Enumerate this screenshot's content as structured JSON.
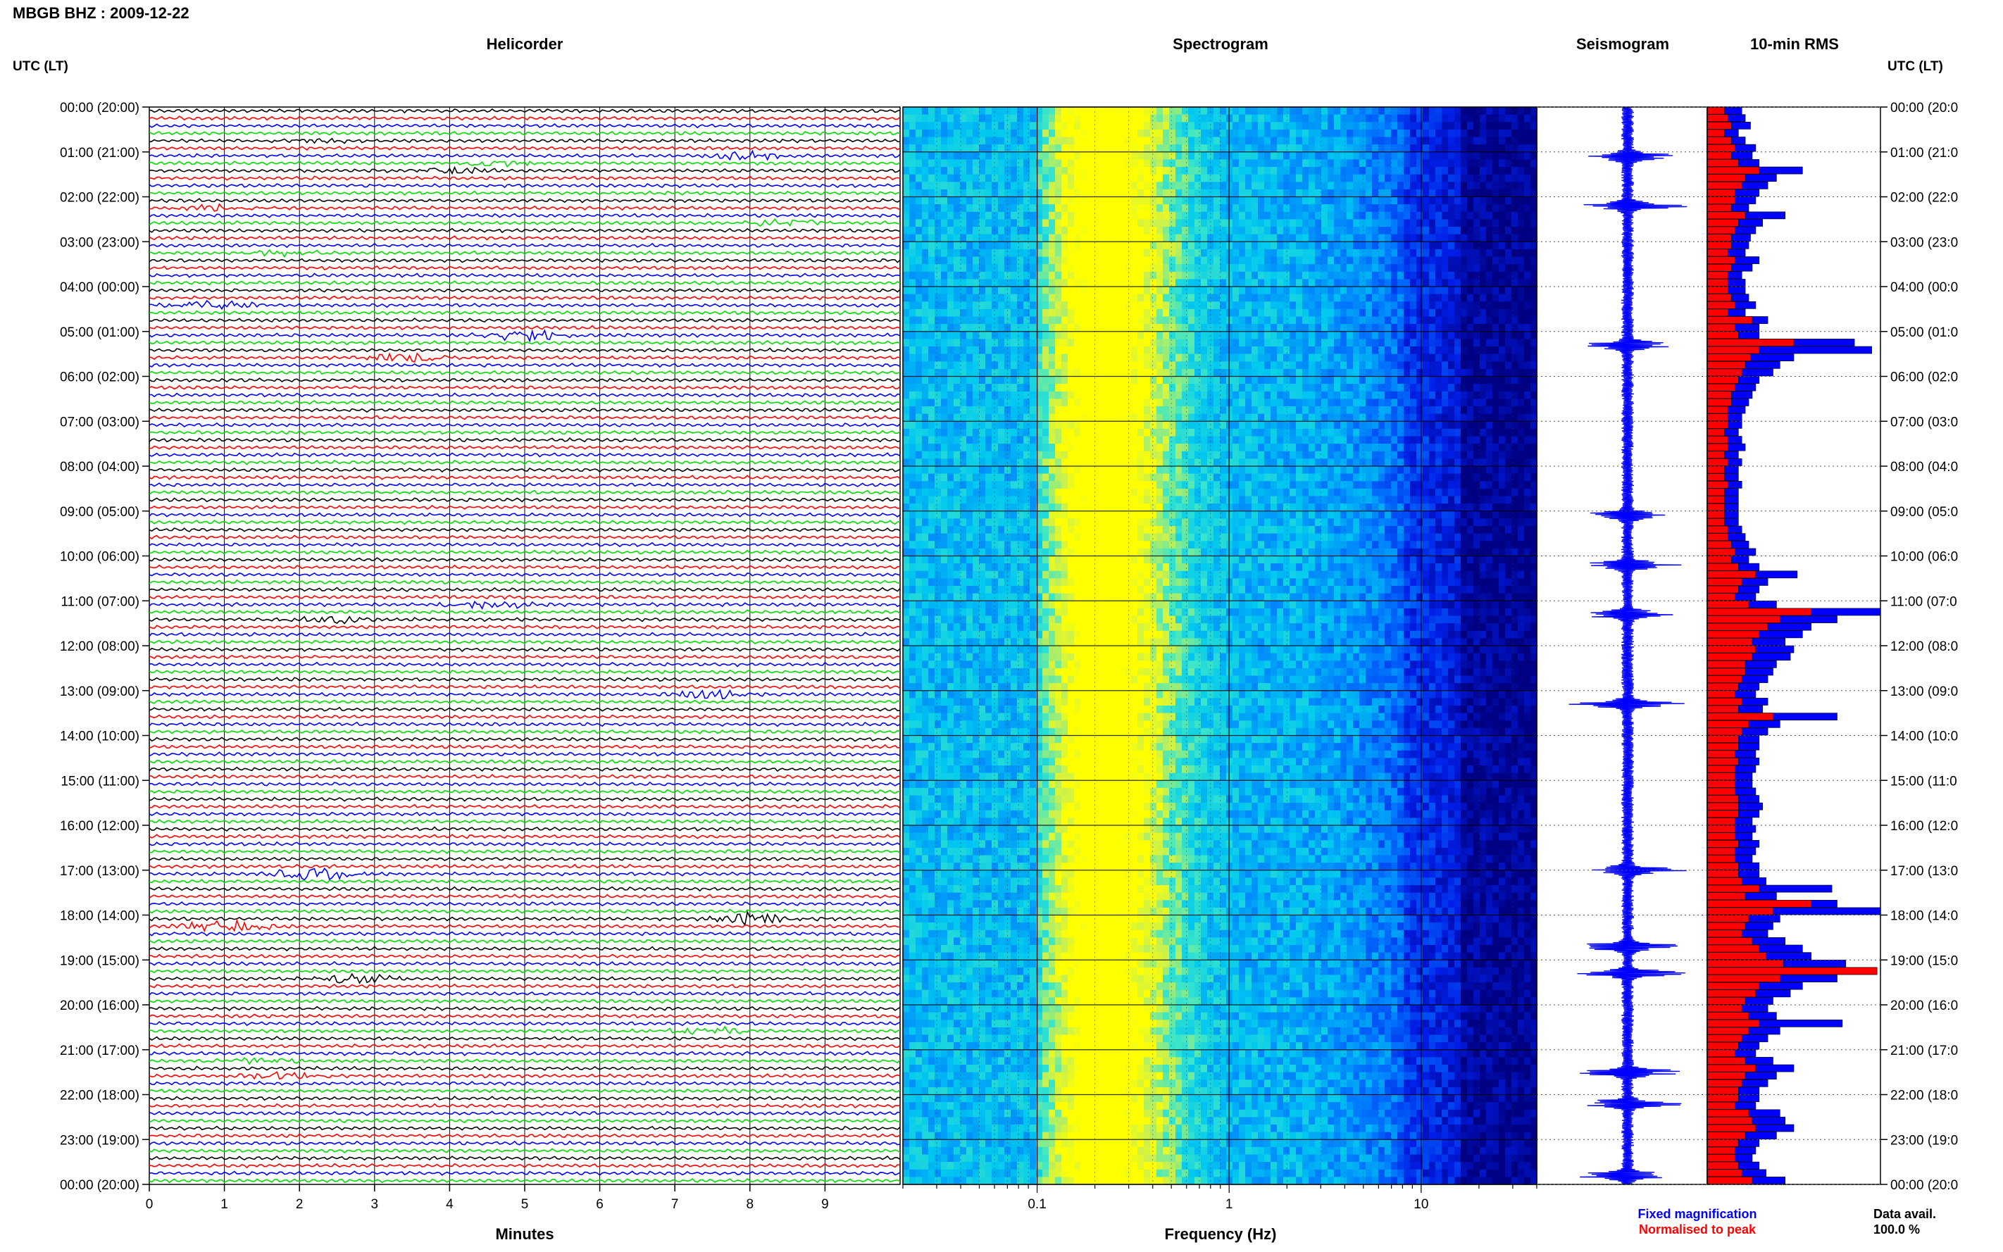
{
  "header": {
    "station_title": "MBGB BHZ : 2009-12-22",
    "utc_label_left": "UTC (LT)",
    "utc_label_right": "UTC (LT)"
  },
  "panels": {
    "helicorder_title": "Helicorder",
    "spectrogram_title": "Spectrogram",
    "seismogram_title": "Seismogram",
    "rms_title": "10-min RMS"
  },
  "time_labels": [
    "00:00 (20:00)",
    "01:00 (21:00)",
    "02:00 (22:00)",
    "03:00 (23:00)",
    "04:00 (00:00)",
    "05:00 (01:00)",
    "06:00 (02:00)",
    "07:00 (03:00)",
    "08:00 (04:00)",
    "09:00 (05:00)",
    "10:00 (06:00)",
    "11:00 (07:00)",
    "12:00 (08:00)",
    "13:00 (09:00)",
    "14:00 (10:00)",
    "15:00 (11:00)",
    "16:00 (12:00)",
    "17:00 (13:00)",
    "18:00 (14:00)",
    "19:00 (15:00)",
    "20:00 (16:00)",
    "21:00 (17:00)",
    "22:00 (18:00)",
    "23:00 (19:00)",
    "00:00 (20:00)"
  ],
  "time_labels_right": [
    "00:00 (20:0",
    "01:00 (21:0",
    "02:00 (22:0",
    "03:00 (23:0",
    "04:00 (00:0",
    "05:00 (01:0",
    "06:00 (02:0",
    "07:00 (03:0",
    "08:00 (04:0",
    "09:00 (05:0",
    "10:00 (06:0",
    "11:00 (07:0",
    "12:00 (08:0",
    "13:00 (09:0",
    "14:00 (10:0",
    "15:00 (11:0",
    "16:00 (12:0",
    "17:00 (13:0",
    "18:00 (14:0",
    "19:00 (15:0",
    "20:00 (16:0",
    "21:00 (17:0",
    "22:00 (18:0",
    "23:00 (19:0",
    "00:00 (20:0"
  ],
  "footer": {
    "legend_fixed": "Fixed magnification",
    "legend_normalised": "Normalised to peak",
    "data_avail_label": "Data avail.",
    "data_avail_value": "100.0 %"
  },
  "colors": {
    "trace_cycle": [
      "#000000",
      "#ff0000",
      "#0000ff",
      "#00dd00"
    ],
    "fixed": "#0000ff",
    "normalised": "#ff0000",
    "spectro_low": "#00008b",
    "spectro_mid": "#00bfff",
    "spectro_high": "#ffff00"
  },
  "chart_data": [
    {
      "type": "line",
      "panel": "helicorder",
      "title": "Helicorder",
      "xlabel": "Minutes",
      "xticks": [
        "0",
        "1",
        "2",
        "3",
        "4",
        "5",
        "6",
        "7",
        "8",
        "9"
      ],
      "xlim": [
        0,
        10
      ],
      "trace_interval_minutes": 10,
      "traces_per_hour": 6,
      "hours": 24,
      "events": [
        {
          "hour": 0,
          "slot": 4,
          "minute": 2.2,
          "amp": 2.0
        },
        {
          "hour": 1,
          "slot": 1,
          "minute": 4.5,
          "amp": 3.0
        },
        {
          "hour": 1,
          "slot": 2,
          "minute": 4.0,
          "amp": 3.0
        },
        {
          "hour": 1,
          "slot": 0,
          "minute": 8.0,
          "amp": 3.5
        },
        {
          "hour": 2,
          "slot": 3,
          "minute": 8.5,
          "amp": 3.0
        },
        {
          "hour": 2,
          "slot": 1,
          "minute": 1.0,
          "amp": 3.0
        },
        {
          "hour": 3,
          "slot": 1,
          "minute": 1.8,
          "amp": 2.5
        },
        {
          "hour": 4,
          "slot": 2,
          "minute": 0.9,
          "amp": 4.0
        },
        {
          "hour": 5,
          "slot": 0,
          "minute": 5.0,
          "amp": 5.0
        },
        {
          "hour": 5,
          "slot": 3,
          "minute": 3.5,
          "amp": 4.0
        },
        {
          "hour": 11,
          "slot": 0,
          "minute": 4.5,
          "amp": 4.0
        },
        {
          "hour": 11,
          "slot": 2,
          "minute": 2.5,
          "amp": 3.0
        },
        {
          "hour": 13,
          "slot": 0,
          "minute": 7.5,
          "amp": 3.5
        },
        {
          "hour": 17,
          "slot": 0,
          "minute": 2.2,
          "amp": 5.0
        },
        {
          "hour": 18,
          "slot": 1,
          "minute": 1.0,
          "amp": 5.0
        },
        {
          "hour": 18,
          "slot": 0,
          "minute": 8.0,
          "amp": 5.0
        },
        {
          "hour": 19,
          "slot": 2,
          "minute": 2.8,
          "amp": 4.0
        },
        {
          "hour": 20,
          "slot": 3,
          "minute": 7.5,
          "amp": 3.0
        },
        {
          "hour": 21,
          "slot": 1,
          "minute": 1.5,
          "amp": 3.0
        },
        {
          "hour": 21,
          "slot": 3,
          "minute": 1.8,
          "amp": 3.0
        }
      ]
    },
    {
      "type": "heatmap",
      "panel": "spectrogram",
      "title": "Spectrogram",
      "xlabel": "Frequency (Hz)",
      "xscale": "log",
      "xlim": [
        0.02,
        40
      ],
      "xticks": [
        "0.1",
        "1",
        "10"
      ],
      "peak_frequency_hz": 0.2,
      "notes": "energy concentrated 0.12-0.5 Hz (microseism), decreasing above 5 Hz"
    },
    {
      "type": "line",
      "panel": "seismogram",
      "title": "Seismogram",
      "spike_hours": [
        1.1,
        2.2,
        5.3,
        9.1,
        10.2,
        11.3,
        13.3,
        17.0,
        18.7,
        19.3,
        21.5,
        22.2,
        23.8
      ]
    },
    {
      "type": "bar",
      "panel": "rms",
      "title": "10-min RMS",
      "orientation": "horizontal",
      "bins_per_hour": 6,
      "series": [
        {
          "name": "Fixed magnification",
          "values": [
            0.2,
            0.22,
            0.25,
            0.18,
            0.22,
            0.28,
            0.26,
            0.3,
            0.55,
            0.4,
            0.35,
            0.3,
            0.28,
            0.24,
            0.45,
            0.32,
            0.28,
            0.25,
            0.24,
            0.22,
            0.3,
            0.26,
            0.2,
            0.22,
            0.22,
            0.24,
            0.28,
            0.22,
            0.35,
            0.3,
            0.3,
            0.85,
            0.95,
            0.5,
            0.42,
            0.38,
            0.3,
            0.28,
            0.26,
            0.24,
            0.22,
            0.2,
            0.2,
            0.18,
            0.2,
            0.22,
            0.18,
            0.2,
            0.18,
            0.18,
            0.2,
            0.18,
            0.18,
            0.18,
            0.18,
            0.18,
            0.2,
            0.22,
            0.24,
            0.28,
            0.24,
            0.3,
            0.52,
            0.35,
            0.3,
            0.28,
            0.4,
            1.0,
            0.75,
            0.6,
            0.55,
            0.45,
            0.5,
            0.48,
            0.4,
            0.38,
            0.35,
            0.3,
            0.28,
            0.35,
            0.32,
            0.75,
            0.42,
            0.35,
            0.3,
            0.3,
            0.28,
            0.3,
            0.28,
            0.26,
            0.26,
            0.28,
            0.3,
            0.32,
            0.3,
            0.26,
            0.28,
            0.26,
            0.3,
            0.28,
            0.26,
            0.3,
            0.3,
            0.34,
            0.72,
            0.4,
            0.75,
            1.0,
            0.42,
            0.38,
            0.35,
            0.45,
            0.55,
            0.6,
            0.8,
            0.98,
            0.75,
            0.55,
            0.48,
            0.38,
            0.35,
            0.4,
            0.78,
            0.42,
            0.35,
            0.3,
            0.28,
            0.38,
            0.5,
            0.4,
            0.35,
            0.3,
            0.3,
            0.28,
            0.42,
            0.45,
            0.5,
            0.4,
            0.3,
            0.28,
            0.26,
            0.3,
            0.34,
            0.45
          ]
        },
        {
          "name": "Normalised to peak",
          "values": [
            0.1,
            0.12,
            0.14,
            0.1,
            0.14,
            0.16,
            0.14,
            0.18,
            0.3,
            0.22,
            0.2,
            0.16,
            0.16,
            0.14,
            0.22,
            0.18,
            0.16,
            0.14,
            0.14,
            0.12,
            0.16,
            0.14,
            0.12,
            0.12,
            0.12,
            0.14,
            0.16,
            0.12,
            0.26,
            0.16,
            0.18,
            0.5,
            0.3,
            0.25,
            0.22,
            0.2,
            0.18,
            0.16,
            0.14,
            0.14,
            0.12,
            0.12,
            0.12,
            0.1,
            0.12,
            0.12,
            0.1,
            0.12,
            0.1,
            0.1,
            0.12,
            0.1,
            0.1,
            0.1,
            0.1,
            0.1,
            0.12,
            0.12,
            0.14,
            0.16,
            0.14,
            0.18,
            0.28,
            0.2,
            0.18,
            0.16,
            0.24,
            0.6,
            0.42,
            0.35,
            0.3,
            0.26,
            0.28,
            0.26,
            0.22,
            0.22,
            0.2,
            0.18,
            0.16,
            0.2,
            0.18,
            0.38,
            0.24,
            0.2,
            0.18,
            0.18,
            0.16,
            0.18,
            0.16,
            0.16,
            0.16,
            0.16,
            0.18,
            0.18,
            0.18,
            0.16,
            0.16,
            0.16,
            0.18,
            0.16,
            0.16,
            0.18,
            0.18,
            0.2,
            0.3,
            0.22,
            0.6,
            0.38,
            0.24,
            0.22,
            0.2,
            0.26,
            0.3,
            0.34,
            0.44,
            0.98,
            0.42,
            0.3,
            0.28,
            0.22,
            0.2,
            0.24,
            0.3,
            0.24,
            0.2,
            0.18,
            0.16,
            0.22,
            0.28,
            0.22,
            0.2,
            0.18,
            0.18,
            0.16,
            0.24,
            0.26,
            0.28,
            0.22,
            0.18,
            0.16,
            0.16,
            0.18,
            0.2,
            0.26
          ]
        }
      ]
    }
  ]
}
